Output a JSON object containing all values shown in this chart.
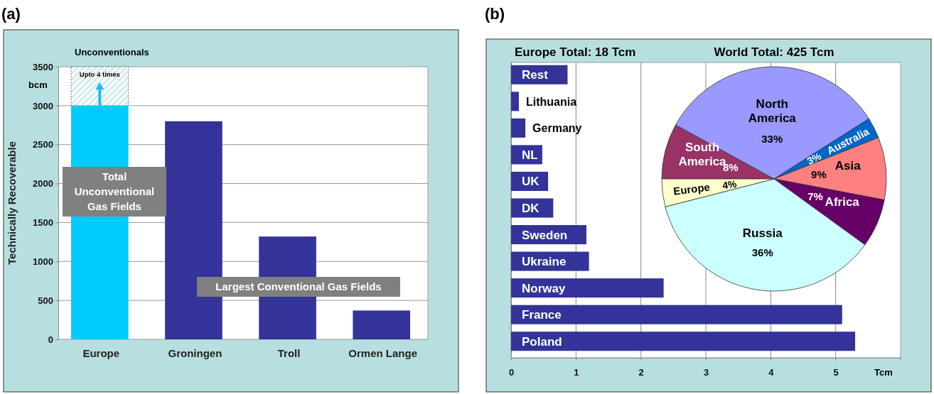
{
  "chart_data": [
    {
      "type": "bar",
      "title": "Unconventionals",
      "ylabel": "Technically Recoverable",
      "categories": [
        "Europe",
        "Groningen",
        "Troll",
        "Ormen Lange"
      ],
      "values": [
        3000,
        2800,
        1320,
        370
      ],
      "colors": [
        "#00ccff",
        "#333399",
        "#333399",
        "#333399"
      ],
      "ylim": [
        0,
        3500
      ],
      "yticks": [
        0,
        500,
        1000,
        1500,
        2000,
        2500,
        3000,
        3500
      ],
      "grid": "y",
      "annotations": [
        "(a)",
        "bcm",
        "Upto 4 times",
        "Total Unconventional Gas Fields",
        "Largest Conventional Gas Fields"
      ]
    },
    {
      "type": "bar",
      "orientation": "horizontal",
      "title": "Europe Total: 18 Tcm",
      "xlabel": "Tcm",
      "categories": [
        "Rest",
        "Lithuania",
        "Germany",
        "NL",
        "UK",
        "DK",
        "Sweden",
        "Ukraine",
        "Norway",
        "France",
        "Poland"
      ],
      "values": [
        0.87,
        0.12,
        0.22,
        0.48,
        0.57,
        0.65,
        1.16,
        1.2,
        2.35,
        5.1,
        5.3
      ],
      "color": "#333399",
      "xlim": [
        0,
        6
      ],
      "xticks": [
        0,
        1,
        2,
        3,
        4,
        5
      ],
      "grid": "x",
      "annotations": [
        "(b)"
      ]
    },
    {
      "type": "pie",
      "title": "World Total: 425 Tcm",
      "categories": [
        "South America",
        "North America",
        "Australia",
        "Asia",
        "Africa",
        "Russia",
        "Europe"
      ],
      "values": [
        8,
        33,
        3,
        9,
        7,
        36,
        4
      ],
      "colors": [
        "#993366",
        "#9999ff",
        "#0066cc",
        "#ff8080",
        "#660066",
        "#ccffff",
        "#ffffcc"
      ],
      "value_labels": [
        "8%",
        "33%",
        "3%",
        "9%",
        "7%",
        "36%",
        "4%"
      ]
    }
  ]
}
